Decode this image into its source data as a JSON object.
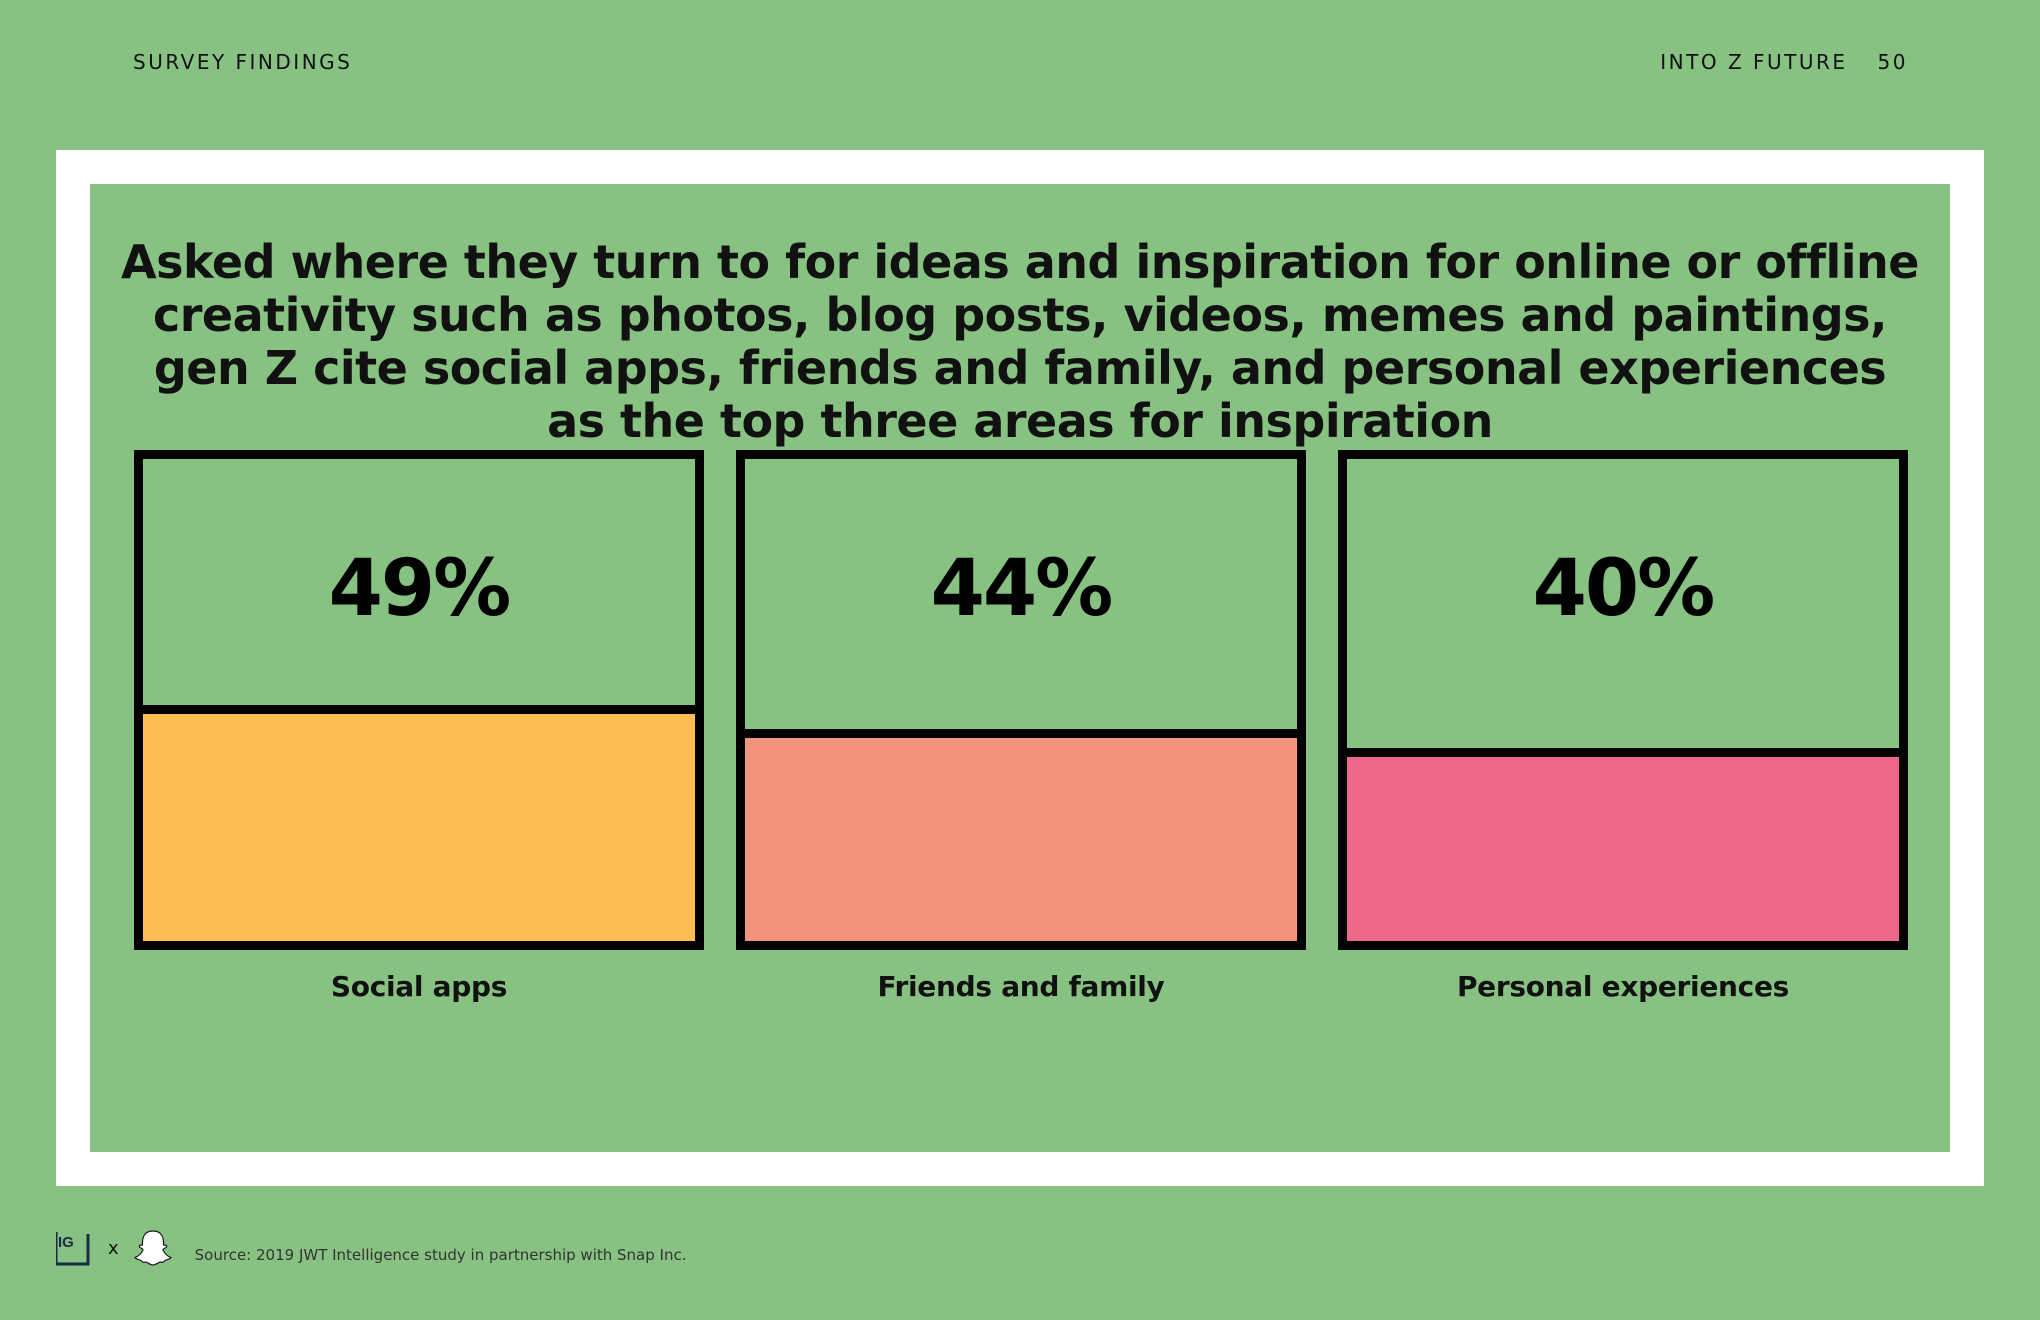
{
  "header": {
    "section": "SURVEY FINDINGS",
    "publication": "INTO Z FUTURE",
    "page_number": "50"
  },
  "chart_data": {
    "type": "bar",
    "title": "Asked where they turn to for ideas and inspiration for online or offline creativity such as photos, blog posts, videos, memes and paintings, gen Z cite social apps, friends and family, and personal experiences as the top three areas for inspiration",
    "categories": [
      "Social apps",
      "Friends and family",
      "Personal experiences"
    ],
    "values": [
      49,
      44,
      40
    ],
    "value_labels": [
      "49%",
      "44%",
      "40%"
    ],
    "colors": [
      "#fcbd55",
      "#f2937c",
      "#ec6789"
    ],
    "ylim": [
      0,
      100
    ],
    "grid": false
  },
  "footer": {
    "source": "Source: 2019 JWT Intelligence study in partnership with Snap Inc.",
    "separator": "x",
    "logo_text": "IG"
  },
  "colors": {
    "background": "#87c282",
    "frame": "#ffffff",
    "border": "#000000"
  }
}
